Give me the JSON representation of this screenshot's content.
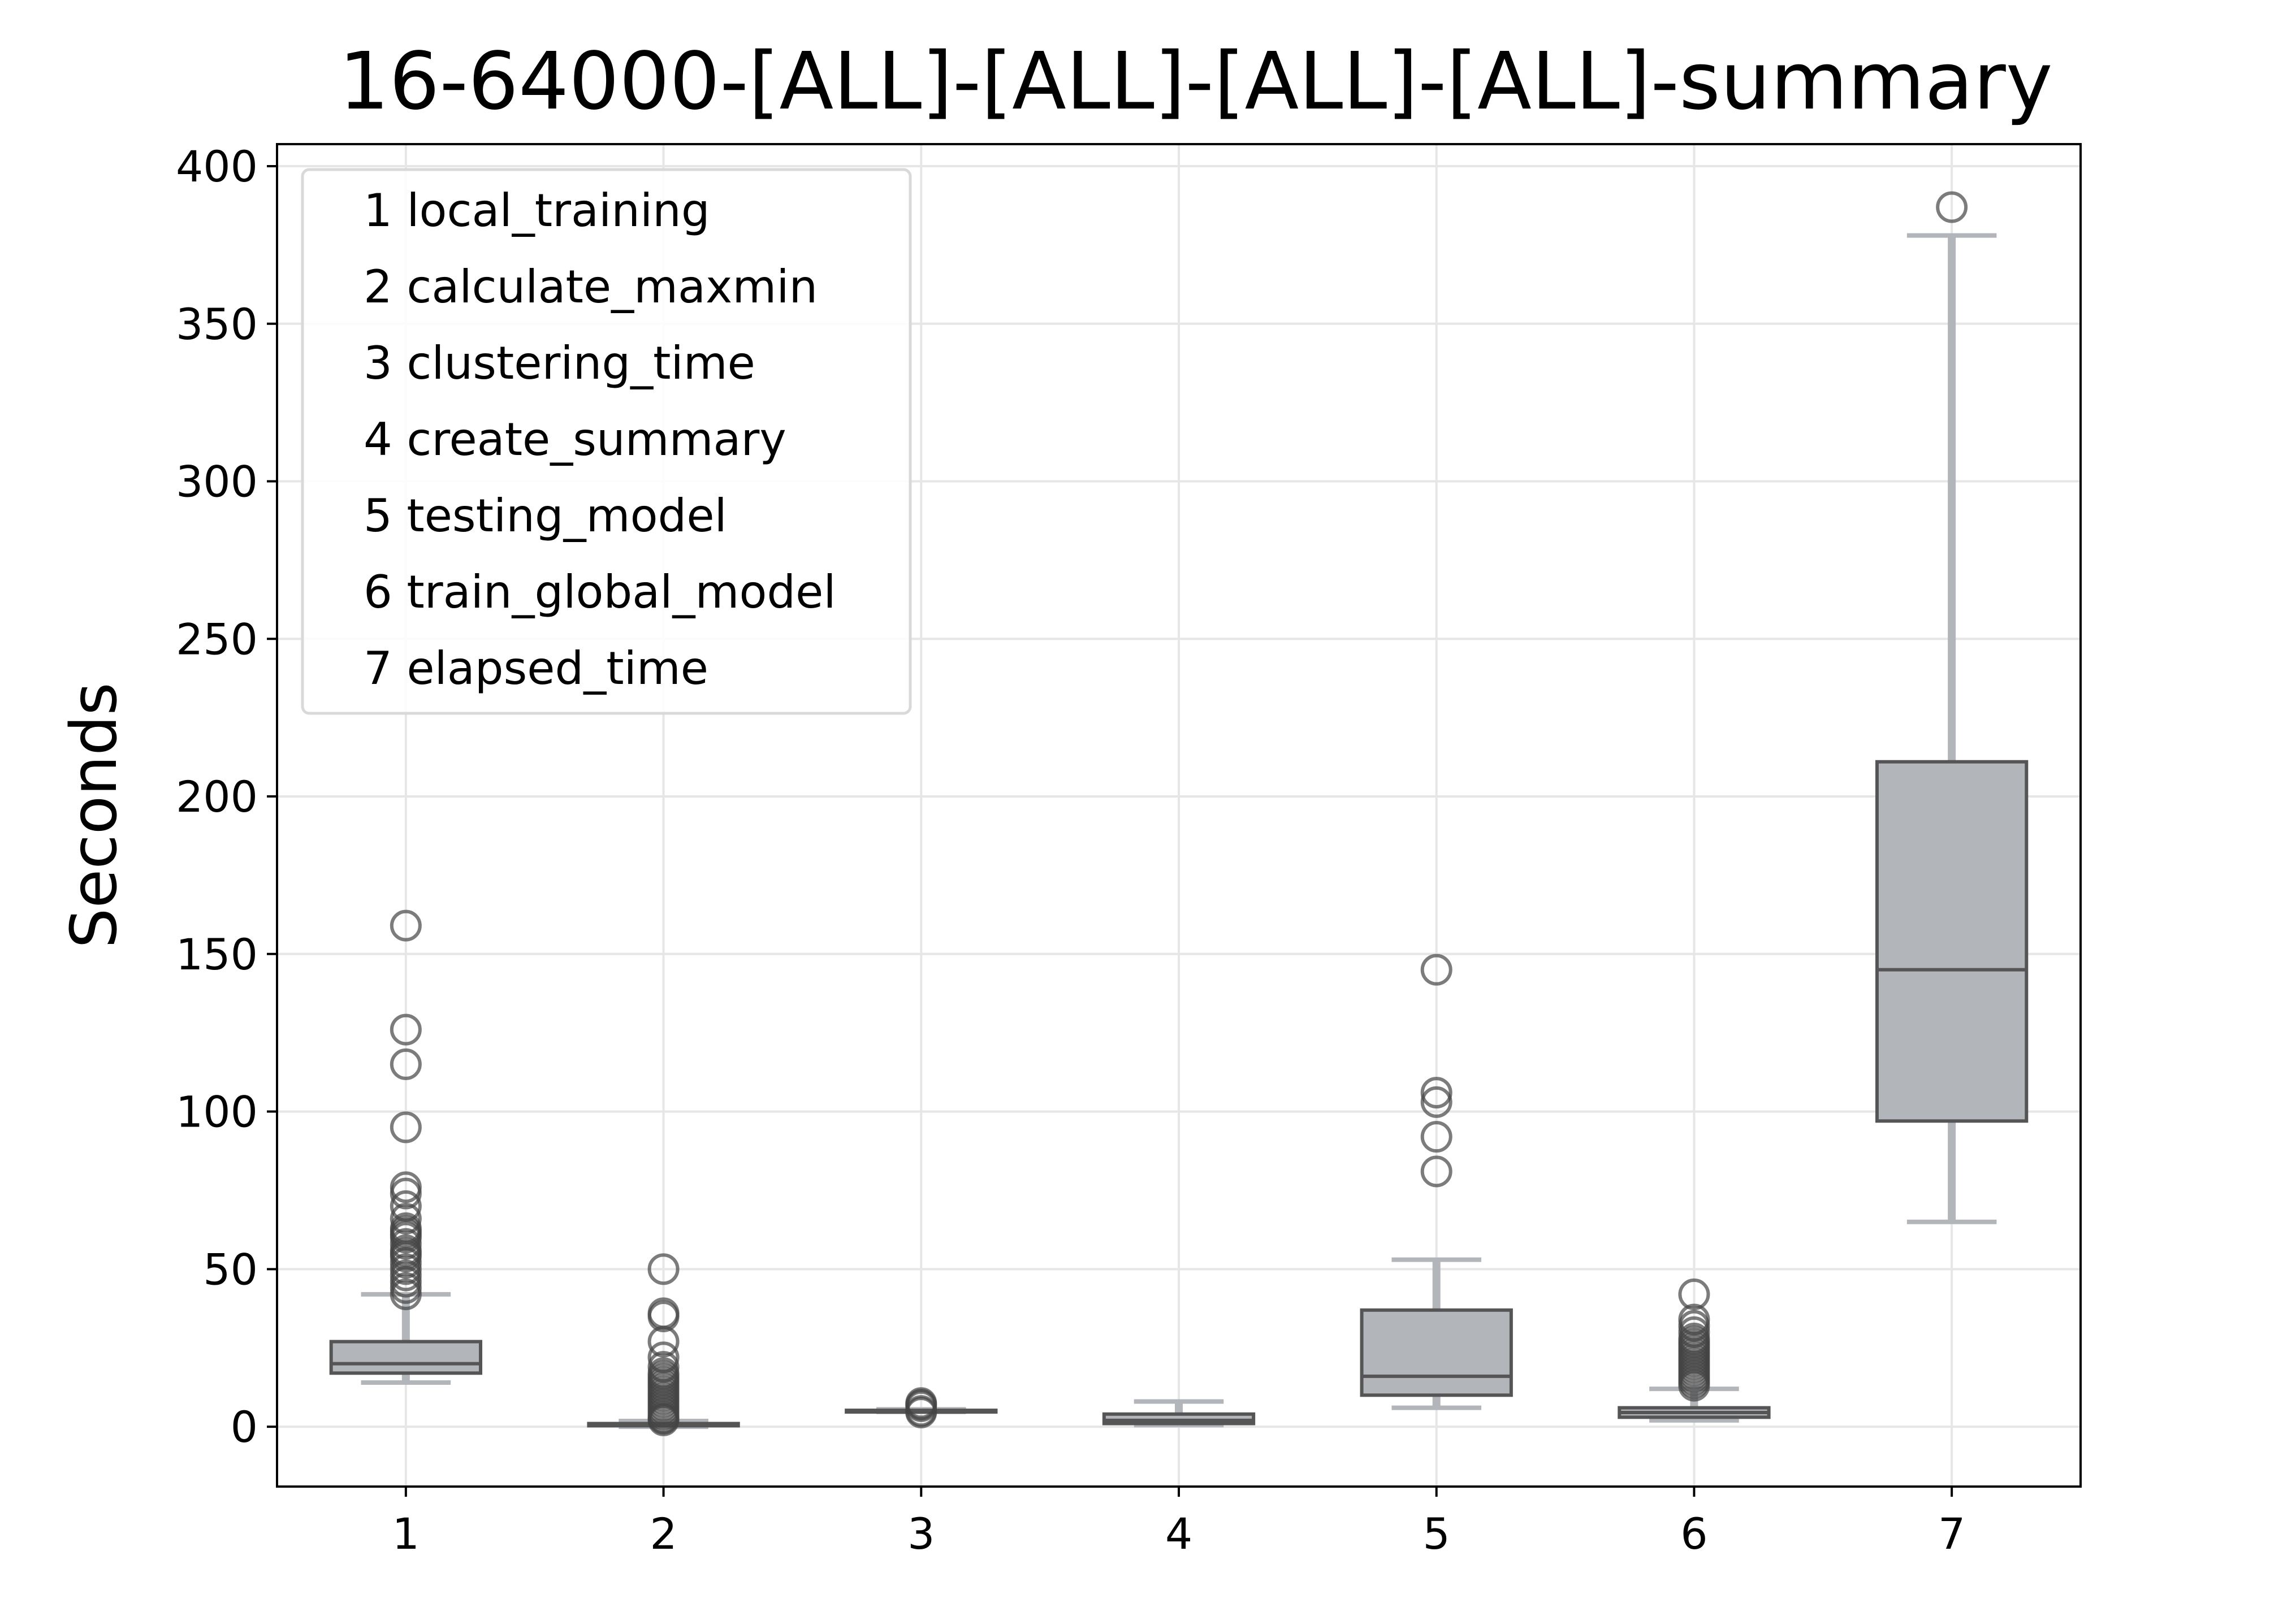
{
  "chart_data": {
    "type": "box",
    "title": "16-64000-[ALL]-[ALL]-[ALL]-[ALL]-summary",
    "xlabel": "",
    "ylabel": "Seconds",
    "ylim": [
      -19,
      407
    ],
    "xlim": [
      0.5,
      7.5
    ],
    "yticks": [
      0,
      50,
      100,
      150,
      200,
      250,
      300,
      350,
      400
    ],
    "categories": [
      "1",
      "2",
      "3",
      "4",
      "5",
      "6",
      "7"
    ],
    "grid": true,
    "legend_position": "top-left",
    "legend": [
      "1 local_training",
      "2 calculate_maxmin",
      "3 clustering_time",
      "4 create_summary",
      "5 testing_model",
      "6 train_global_model",
      "7 elapsed_time"
    ],
    "boxes": [
      {
        "category": "1",
        "whislo": 14,
        "q1": 17,
        "median": 20,
        "q3": 27,
        "whishi": 42,
        "fliers": [
          159,
          126,
          115,
          95,
          76,
          74,
          70,
          66,
          63,
          62,
          61,
          60,
          58,
          56,
          55,
          54,
          52,
          50,
          48,
          46,
          44,
          42
        ]
      },
      {
        "category": "2",
        "whislo": 0,
        "q1": 0.3,
        "median": 0.7,
        "q3": 1.0,
        "whishi": 1.8,
        "fliers": [
          50,
          36,
          35,
          27,
          22,
          19,
          17,
          16,
          15,
          14,
          13,
          12,
          11,
          10,
          9,
          8,
          7,
          6,
          5,
          4,
          3,
          2.5,
          2
        ]
      },
      {
        "category": "3",
        "whislo": 4.7,
        "q1": 4.8,
        "median": 5.0,
        "q3": 5.2,
        "whishi": 5.5,
        "fliers": [
          7.5,
          7,
          6.5,
          5,
          4.5
        ]
      },
      {
        "category": "4",
        "whislo": 0.5,
        "q1": 1.0,
        "median": 2.0,
        "q3": 4.0,
        "whishi": 8.0,
        "fliers": []
      },
      {
        "category": "5",
        "whislo": 6,
        "q1": 10,
        "median": 16,
        "q3": 37,
        "whishi": 53,
        "fliers": [
          145,
          106,
          103,
          92,
          81
        ]
      },
      {
        "category": "6",
        "whislo": 2,
        "q1": 3,
        "median": 4.5,
        "q3": 6,
        "whishi": 12,
        "fliers": [
          42,
          34,
          32,
          30,
          28,
          27,
          26,
          25,
          24,
          23,
          22,
          21,
          20,
          19,
          18,
          17,
          16,
          15,
          14,
          13
        ]
      },
      {
        "category": "7",
        "whislo": 65,
        "q1": 97,
        "median": 145,
        "q3": 211,
        "whishi": 378,
        "fliers": [
          387
        ]
      }
    ]
  },
  "colors": {
    "box_fill": "#b2b5b9",
    "box_edge": "#555555",
    "whisker": "#b2b5b9",
    "flier_edge": "#444444",
    "grid": "#e6e6e6",
    "axis": "#000000",
    "legend_border": "#d9d9d9"
  }
}
